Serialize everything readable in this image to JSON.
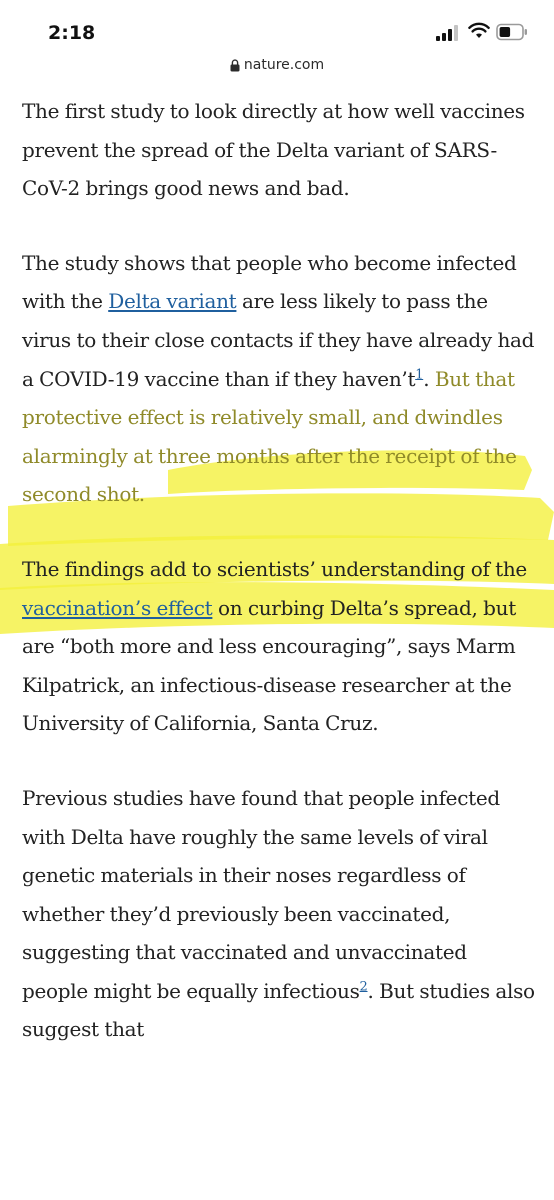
{
  "status_bar": {
    "time": "2:18",
    "icons": [
      "signal-icon",
      "wifi-icon",
      "battery-icon"
    ]
  },
  "url_bar": {
    "domain": "nature.com",
    "icon": "lock-icon"
  },
  "article": {
    "p1": "The first study to look directly at how well vaccines prevent the spread of the Delta variant of SARS-CoV-2 brings good news and bad.",
    "p2_pre": "The study shows that people who become infected with the ",
    "p2_link": "Delta variant",
    "p2_mid": " are less likely to pass the virus to their close contacts if they have already had a COVID-19 vaccine than if they haven’t",
    "p2_ref": "1",
    "p2_dot": ". ",
    "p2_highlight": "But that protective effect is relatively small, and dwindles alarmingly at three months after the receipt of the second shot.",
    "p3_pre": "The findings add to scientists’ understanding of the ",
    "p3_link": "vaccination’s effect",
    "p3_post": " on curbing Delta’s spread, but are “both more and less encouraging”, says Marm Kilpatrick, an infectious-disease researcher at the University of California, Santa Cruz.",
    "p4_pre": "Previous studies have found that people infected with Delta have roughly the same levels of viral genetic materials in their noses regardless of whether they’d previously been vaccinated, suggesting that vaccinated and unvaccinated people might be equally infectious",
    "p4_ref": "2",
    "p4_post": ". But studies also suggest that"
  },
  "colors": {
    "highlight": "#f4f03a",
    "link": "#1f5f9e",
    "text": "#222222"
  }
}
